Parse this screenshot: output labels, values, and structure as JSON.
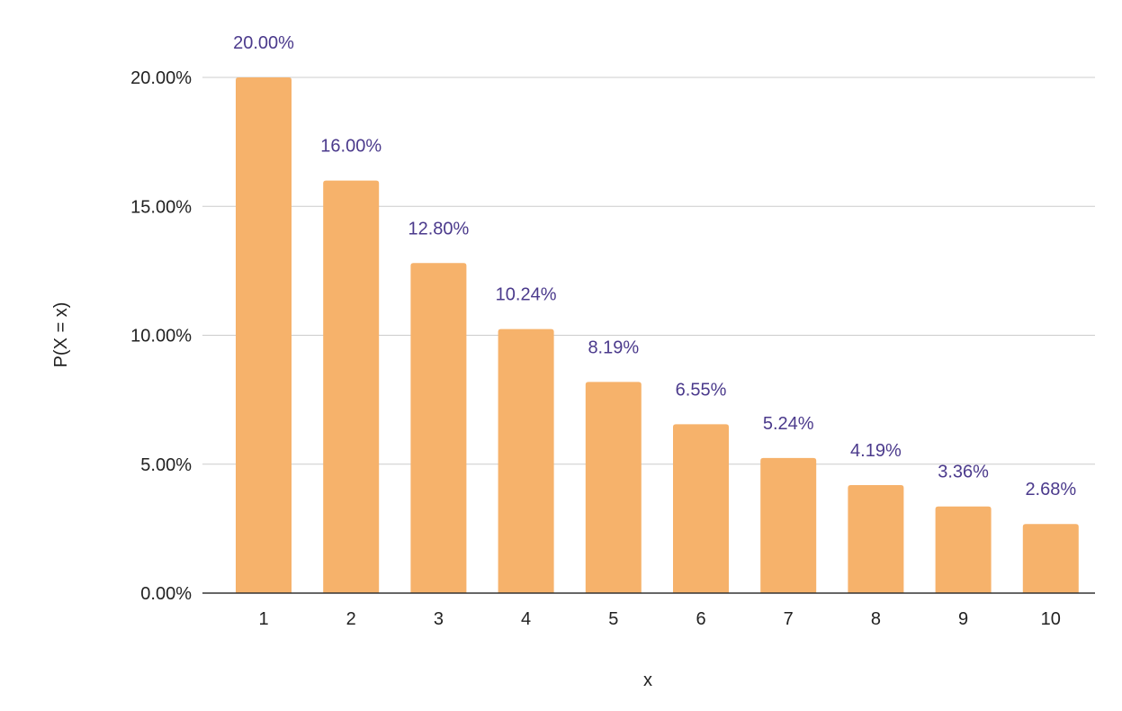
{
  "chart_data": {
    "type": "bar",
    "title": "",
    "xlabel": "x",
    "ylabel": "P(X = x)",
    "categories": [
      "1",
      "2",
      "3",
      "4",
      "5",
      "6",
      "7",
      "8",
      "9",
      "10"
    ],
    "values": [
      20.0,
      16.0,
      12.8,
      10.24,
      8.19,
      6.55,
      5.24,
      4.19,
      3.36,
      2.68
    ],
    "data_labels": [
      "20.00%",
      "16.00%",
      "12.80%",
      "10.24%",
      "8.19%",
      "6.55%",
      "5.24%",
      "4.19%",
      "3.36%",
      "2.68%"
    ],
    "ylim": [
      0,
      20
    ],
    "yticks": [
      0,
      5,
      10,
      15,
      20
    ],
    "ytick_labels": [
      "0.00%",
      "5.00%",
      "10.00%",
      "15.00%",
      "20.00%"
    ],
    "grid": true,
    "legend": "none",
    "colors": {
      "bar": "#F6B26B",
      "data_label": "#4B3A8C",
      "gridline": "#CCCCCC",
      "axis_line": "#333333"
    }
  }
}
